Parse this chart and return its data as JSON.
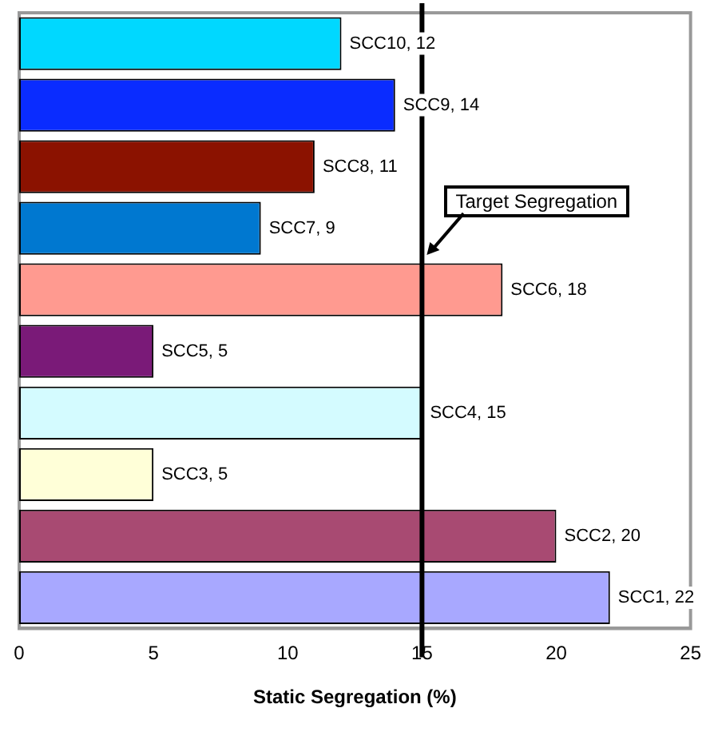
{
  "chart_data": {
    "type": "bar",
    "orientation": "horizontal",
    "xlabel": "Static Segregation (%)",
    "categories": [
      null,
      null,
      null,
      null,
      null,
      null,
      null,
      null,
      null,
      null
    ],
    "values": [
      12,
      14,
      11,
      9,
      18,
      5,
      15,
      5,
      20,
      22
    ],
    "colors": [
      "#00d8ff",
      "#0a2cff",
      "#8b1200",
      "#0078d0",
      "#ff9a90",
      "#7a1a78",
      "#d4fbff",
      "#ffffd8",
      "#a84a72",
      "#a8a8ff"
    ],
    "value_labels": [
      "SCC10, 12",
      "SCC9, 14",
      "SCC8, 11",
      "SCC7, 9",
      "SCC6, 18",
      "SCC5, 5",
      "SCC4, 15",
      "SCC3, 5",
      "SCC2, 20",
      "SCC1, 22"
    ],
    "xlim": [
      0,
      25
    ],
    "xticks": [
      0,
      5,
      10,
      15,
      20,
      25
    ],
    "grid": false,
    "legend": false,
    "tick_labels": "x",
    "ref_lines": [
      {
        "axis": "x",
        "value": 15,
        "label": "Target Segregation",
        "color": "#000000"
      }
    ]
  }
}
